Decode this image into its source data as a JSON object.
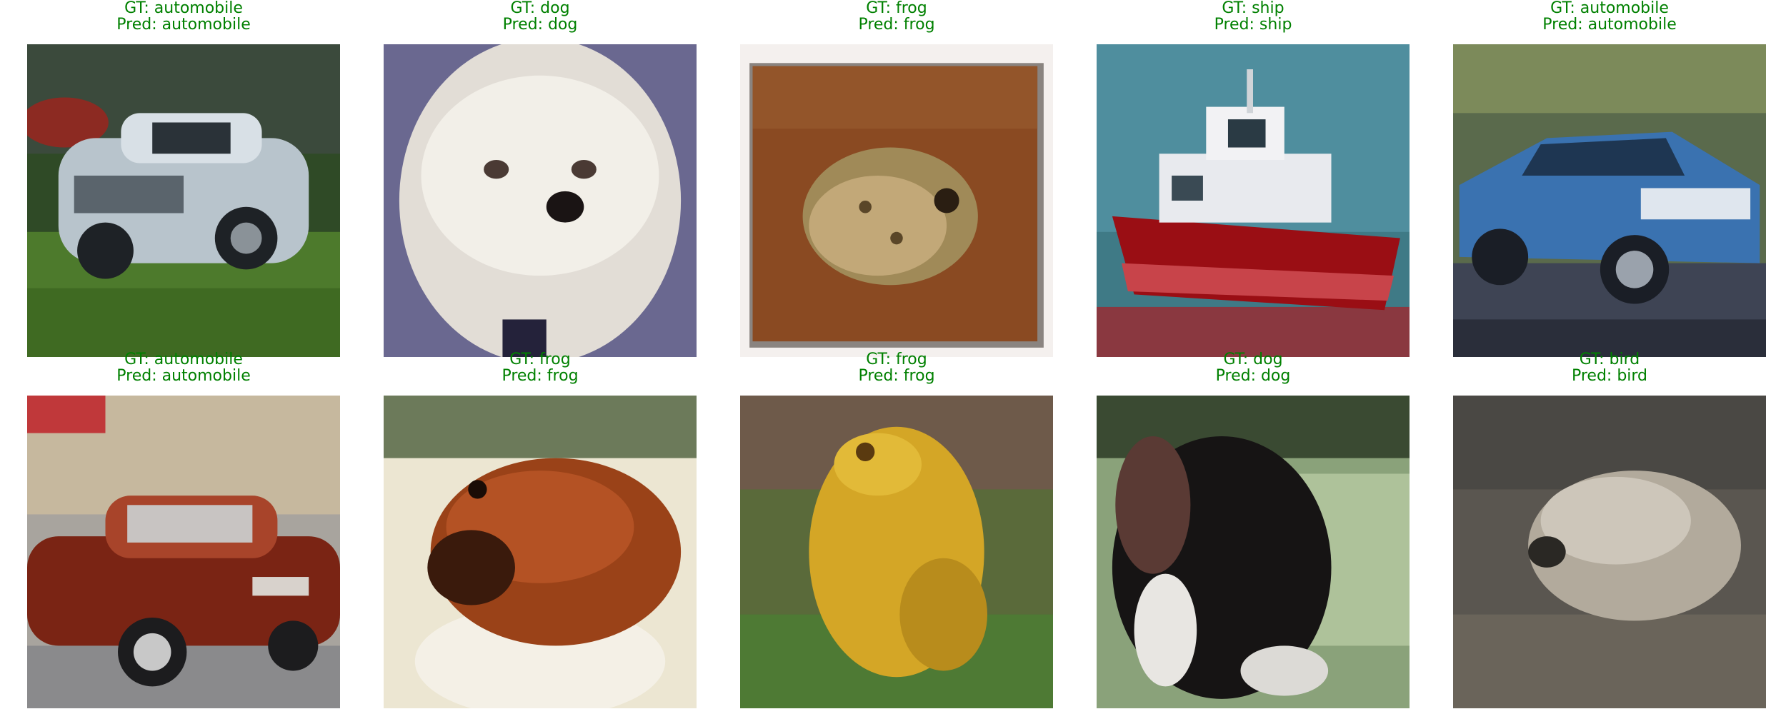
{
  "figure": {
    "label_color": "#008000",
    "gt_prefix": "GT: ",
    "pred_prefix": "Pred: ",
    "samples": [
      {
        "gt": "automobile",
        "pred": "automobile",
        "depicts": "silver-car-on-grass"
      },
      {
        "gt": "dog",
        "pred": "dog",
        "depicts": "white-fluffy-dog"
      },
      {
        "gt": "frog",
        "pred": "frog",
        "depicts": "frog-on-brown-background"
      },
      {
        "gt": "ship",
        "pred": "ship",
        "depicts": "red-white-boat"
      },
      {
        "gt": "automobile",
        "pred": "automobile",
        "depicts": "blue-sports-car"
      },
      {
        "gt": "automobile",
        "pred": "automobile",
        "depicts": "red-sedan-street"
      },
      {
        "gt": "frog",
        "pred": "frog",
        "depicts": "brown-frog-on-leaf"
      },
      {
        "gt": "frog",
        "pred": "frog",
        "depicts": "yellow-frog-on-grass"
      },
      {
        "gt": "dog",
        "pred": "dog",
        "depicts": "black-white-spaniel"
      },
      {
        "gt": "bird",
        "pred": "bird",
        "depicts": "grey-bird-ground"
      }
    ],
    "gt_texts": [
      "GT: automobile",
      "GT: dog",
      "GT: frog",
      "GT: ship",
      "GT: automobile",
      "GT: automobile",
      "GT: frog",
      "GT: frog",
      "GT: dog",
      "GT: bird"
    ],
    "pred_texts": [
      "Pred: automobile",
      "Pred: dog",
      "Pred: frog",
      "Pred: ship",
      "Pred: automobile",
      "Pred: automobile",
      "Pred: frog",
      "Pred: frog",
      "Pred: dog",
      "Pred: bird"
    ]
  }
}
